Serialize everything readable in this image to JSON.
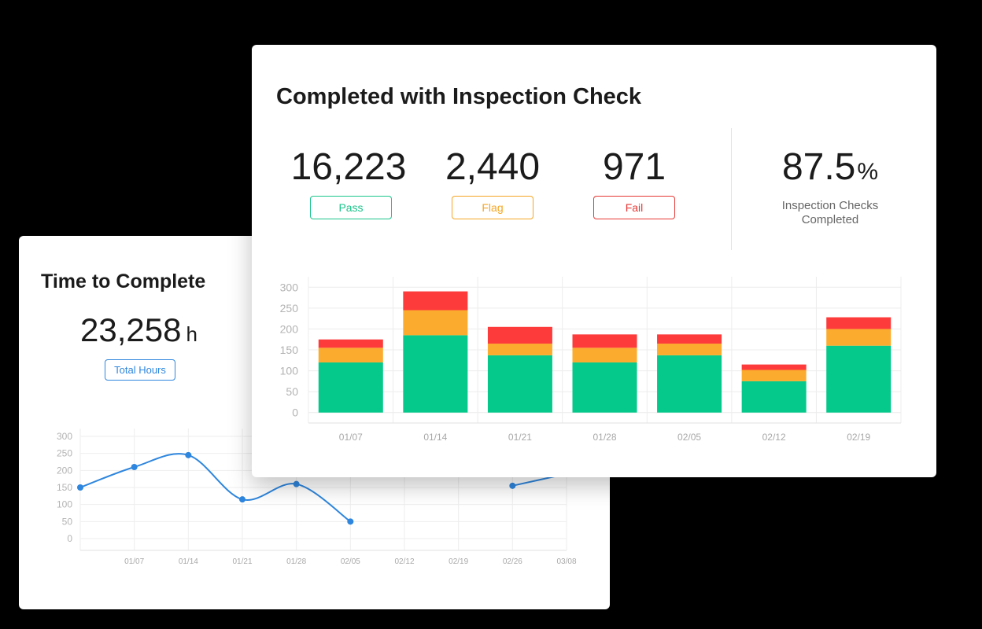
{
  "time_card": {
    "title": "Time to Complete",
    "total_value": "23,258",
    "total_unit": "h",
    "total_label": "Total Hours"
  },
  "inspection_card": {
    "title": "Completed with Inspection Check",
    "pass_value": "16,223",
    "pass_label": "Pass",
    "flag_value": "2,440",
    "flag_label": "Flag",
    "fail_value": "971",
    "fail_label": "Fail",
    "completed_percent": "87.5",
    "completed_percent_sign": "%",
    "completed_label": "Inspection Checks Completed"
  },
  "colors": {
    "pass": "#05c98a",
    "flag": "#fbab2d",
    "fail": "#fd3b3b",
    "line": "#2e86de"
  },
  "chart_data": [
    {
      "type": "line",
      "x": [
        "",
        "01/07",
        "01/14",
        "01/21",
        "01/28",
        "02/05",
        "02/12",
        "02/19",
        "02/26",
        "03/08"
      ],
      "yticks": [
        0,
        50,
        100,
        150,
        200,
        250,
        300
      ],
      "ylim": [
        0,
        300
      ],
      "series": [
        {
          "values": [
            150,
            210,
            245,
            115,
            160,
            50,
            null,
            null,
            155,
            190
          ]
        }
      ],
      "grid": true
    },
    {
      "type": "bar",
      "stacked": true,
      "categories": [
        "01/07",
        "01/14",
        "01/21",
        "01/28",
        "02/05",
        "02/12",
        "02/19"
      ],
      "yticks": [
        0,
        50,
        100,
        150,
        200,
        250,
        300
      ],
      "ylim": [
        -25,
        325
      ],
      "series": [
        {
          "color_key": "pass",
          "values": [
            120,
            185,
            137,
            120,
            137,
            75,
            160
          ]
        },
        {
          "color_key": "flag",
          "values": [
            35,
            60,
            28,
            35,
            28,
            27,
            40
          ]
        },
        {
          "color_key": "fail",
          "values": [
            20,
            45,
            40,
            32,
            22,
            13,
            28
          ]
        }
      ],
      "grid": true
    }
  ]
}
